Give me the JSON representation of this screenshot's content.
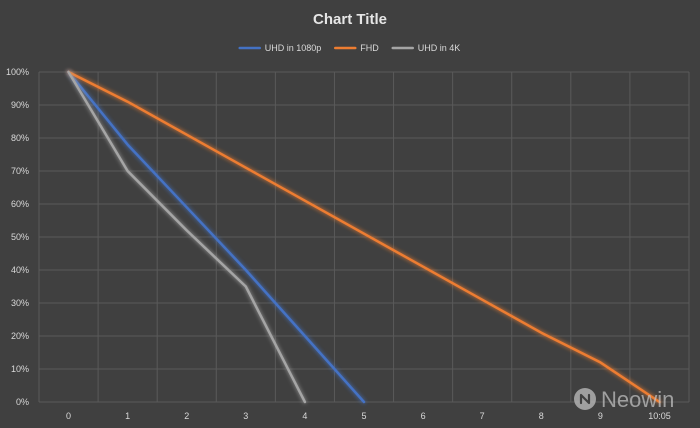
{
  "chart_data": {
    "type": "line",
    "title": "Chart Title",
    "xlabel": "",
    "ylabel": "",
    "x_tick_labels": [
      "0",
      "1",
      "2",
      "3",
      "4",
      "5",
      "6",
      "7",
      "8",
      "9",
      "10:05"
    ],
    "y_tick_labels": [
      "0%",
      "10%",
      "20%",
      "30%",
      "40%",
      "50%",
      "60%",
      "70%",
      "80%",
      "90%",
      "100%"
    ],
    "xlim": [
      -0.5,
      10.5
    ],
    "ylim": [
      0,
      100
    ],
    "grid": true,
    "legend_position": "top-center",
    "series": [
      {
        "name": "UHD in 1080p",
        "color": "#4472c4",
        "points": [
          [
            0,
            100
          ],
          [
            1,
            78
          ],
          [
            2,
            59
          ],
          [
            3,
            40
          ],
          [
            4,
            20
          ],
          [
            5,
            0
          ]
        ]
      },
      {
        "name": "FHD",
        "color": "#ed7d31",
        "points": [
          [
            0,
            100
          ],
          [
            1,
            91
          ],
          [
            2,
            81
          ],
          [
            3,
            71
          ],
          [
            4,
            61
          ],
          [
            5,
            51
          ],
          [
            6,
            41
          ],
          [
            7,
            31
          ],
          [
            8,
            21
          ],
          [
            9,
            12
          ],
          [
            10,
            0
          ]
        ]
      },
      {
        "name": "UHD in 4K",
        "color": "#a5a5a5",
        "points": [
          [
            0,
            100
          ],
          [
            1,
            70
          ],
          [
            2,
            52
          ],
          [
            3,
            35
          ],
          [
            4,
            0
          ]
        ]
      }
    ]
  },
  "watermark": {
    "label": "Neowin",
    "icon": "neowin-logo-icon"
  }
}
